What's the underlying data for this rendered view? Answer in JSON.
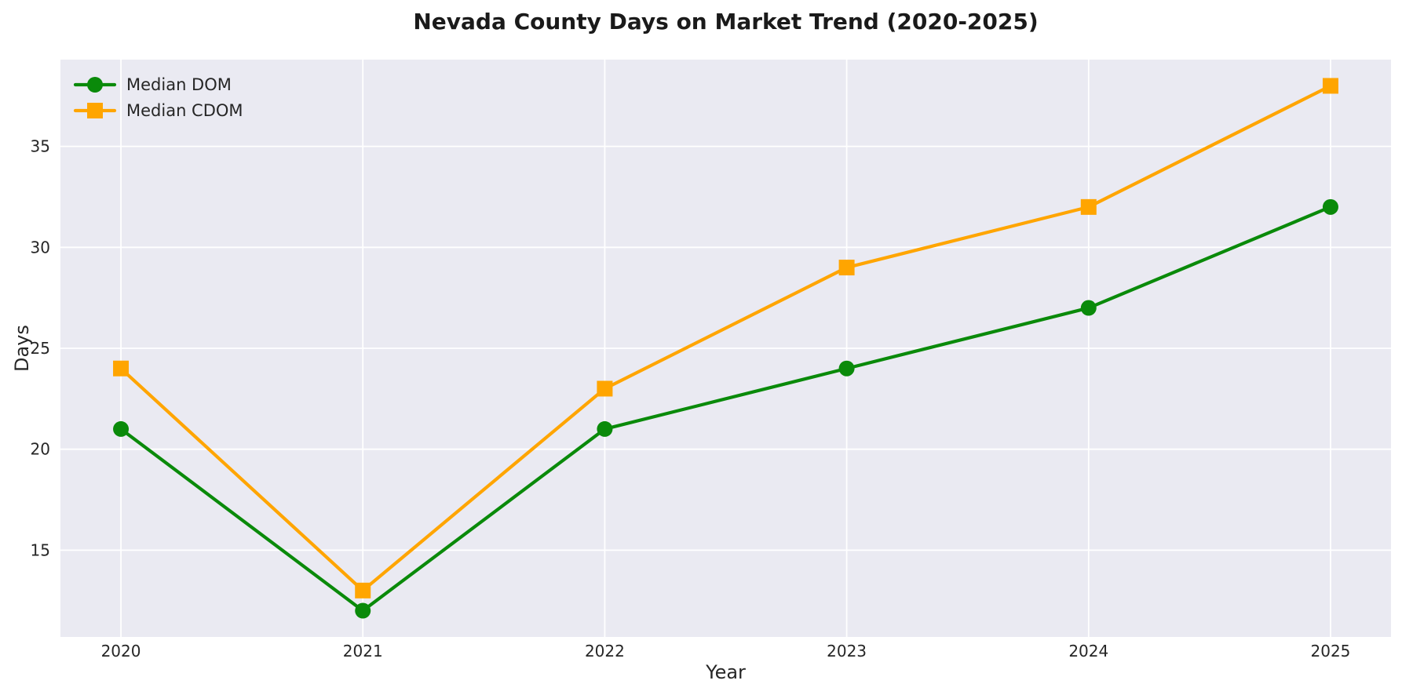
{
  "page_title": "Nevada County Days on Market Trend (2020-2025)",
  "chart_data": {
    "type": "line",
    "title": "Nevada County Days on Market Trend (2020-2025)",
    "xlabel": "Year",
    "ylabel": "Days",
    "x": [
      2020,
      2021,
      2022,
      2023,
      2024,
      2025
    ],
    "series": [
      {
        "name": "Median DOM",
        "values": [
          21,
          12,
          21,
          24,
          27,
          32
        ],
        "color": "#0a8a0a",
        "marker": "circle"
      },
      {
        "name": "Median CDOM",
        "values": [
          24,
          13,
          23,
          29,
          32,
          38
        ],
        "color": "#FFA500",
        "marker": "square"
      }
    ],
    "xticks": [
      2020,
      2021,
      2022,
      2023,
      2024,
      2025
    ],
    "yticks": [
      15,
      20,
      25,
      30,
      35
    ],
    "xlim": [
      2019.75,
      2025.25
    ],
    "ylim": [
      10.7,
      39.3
    ],
    "grid": true,
    "legend_position": "top-left",
    "plot_bg_color": "#EAEAF2",
    "grid_color": "#FFFFFF",
    "text_color": "#262626"
  }
}
